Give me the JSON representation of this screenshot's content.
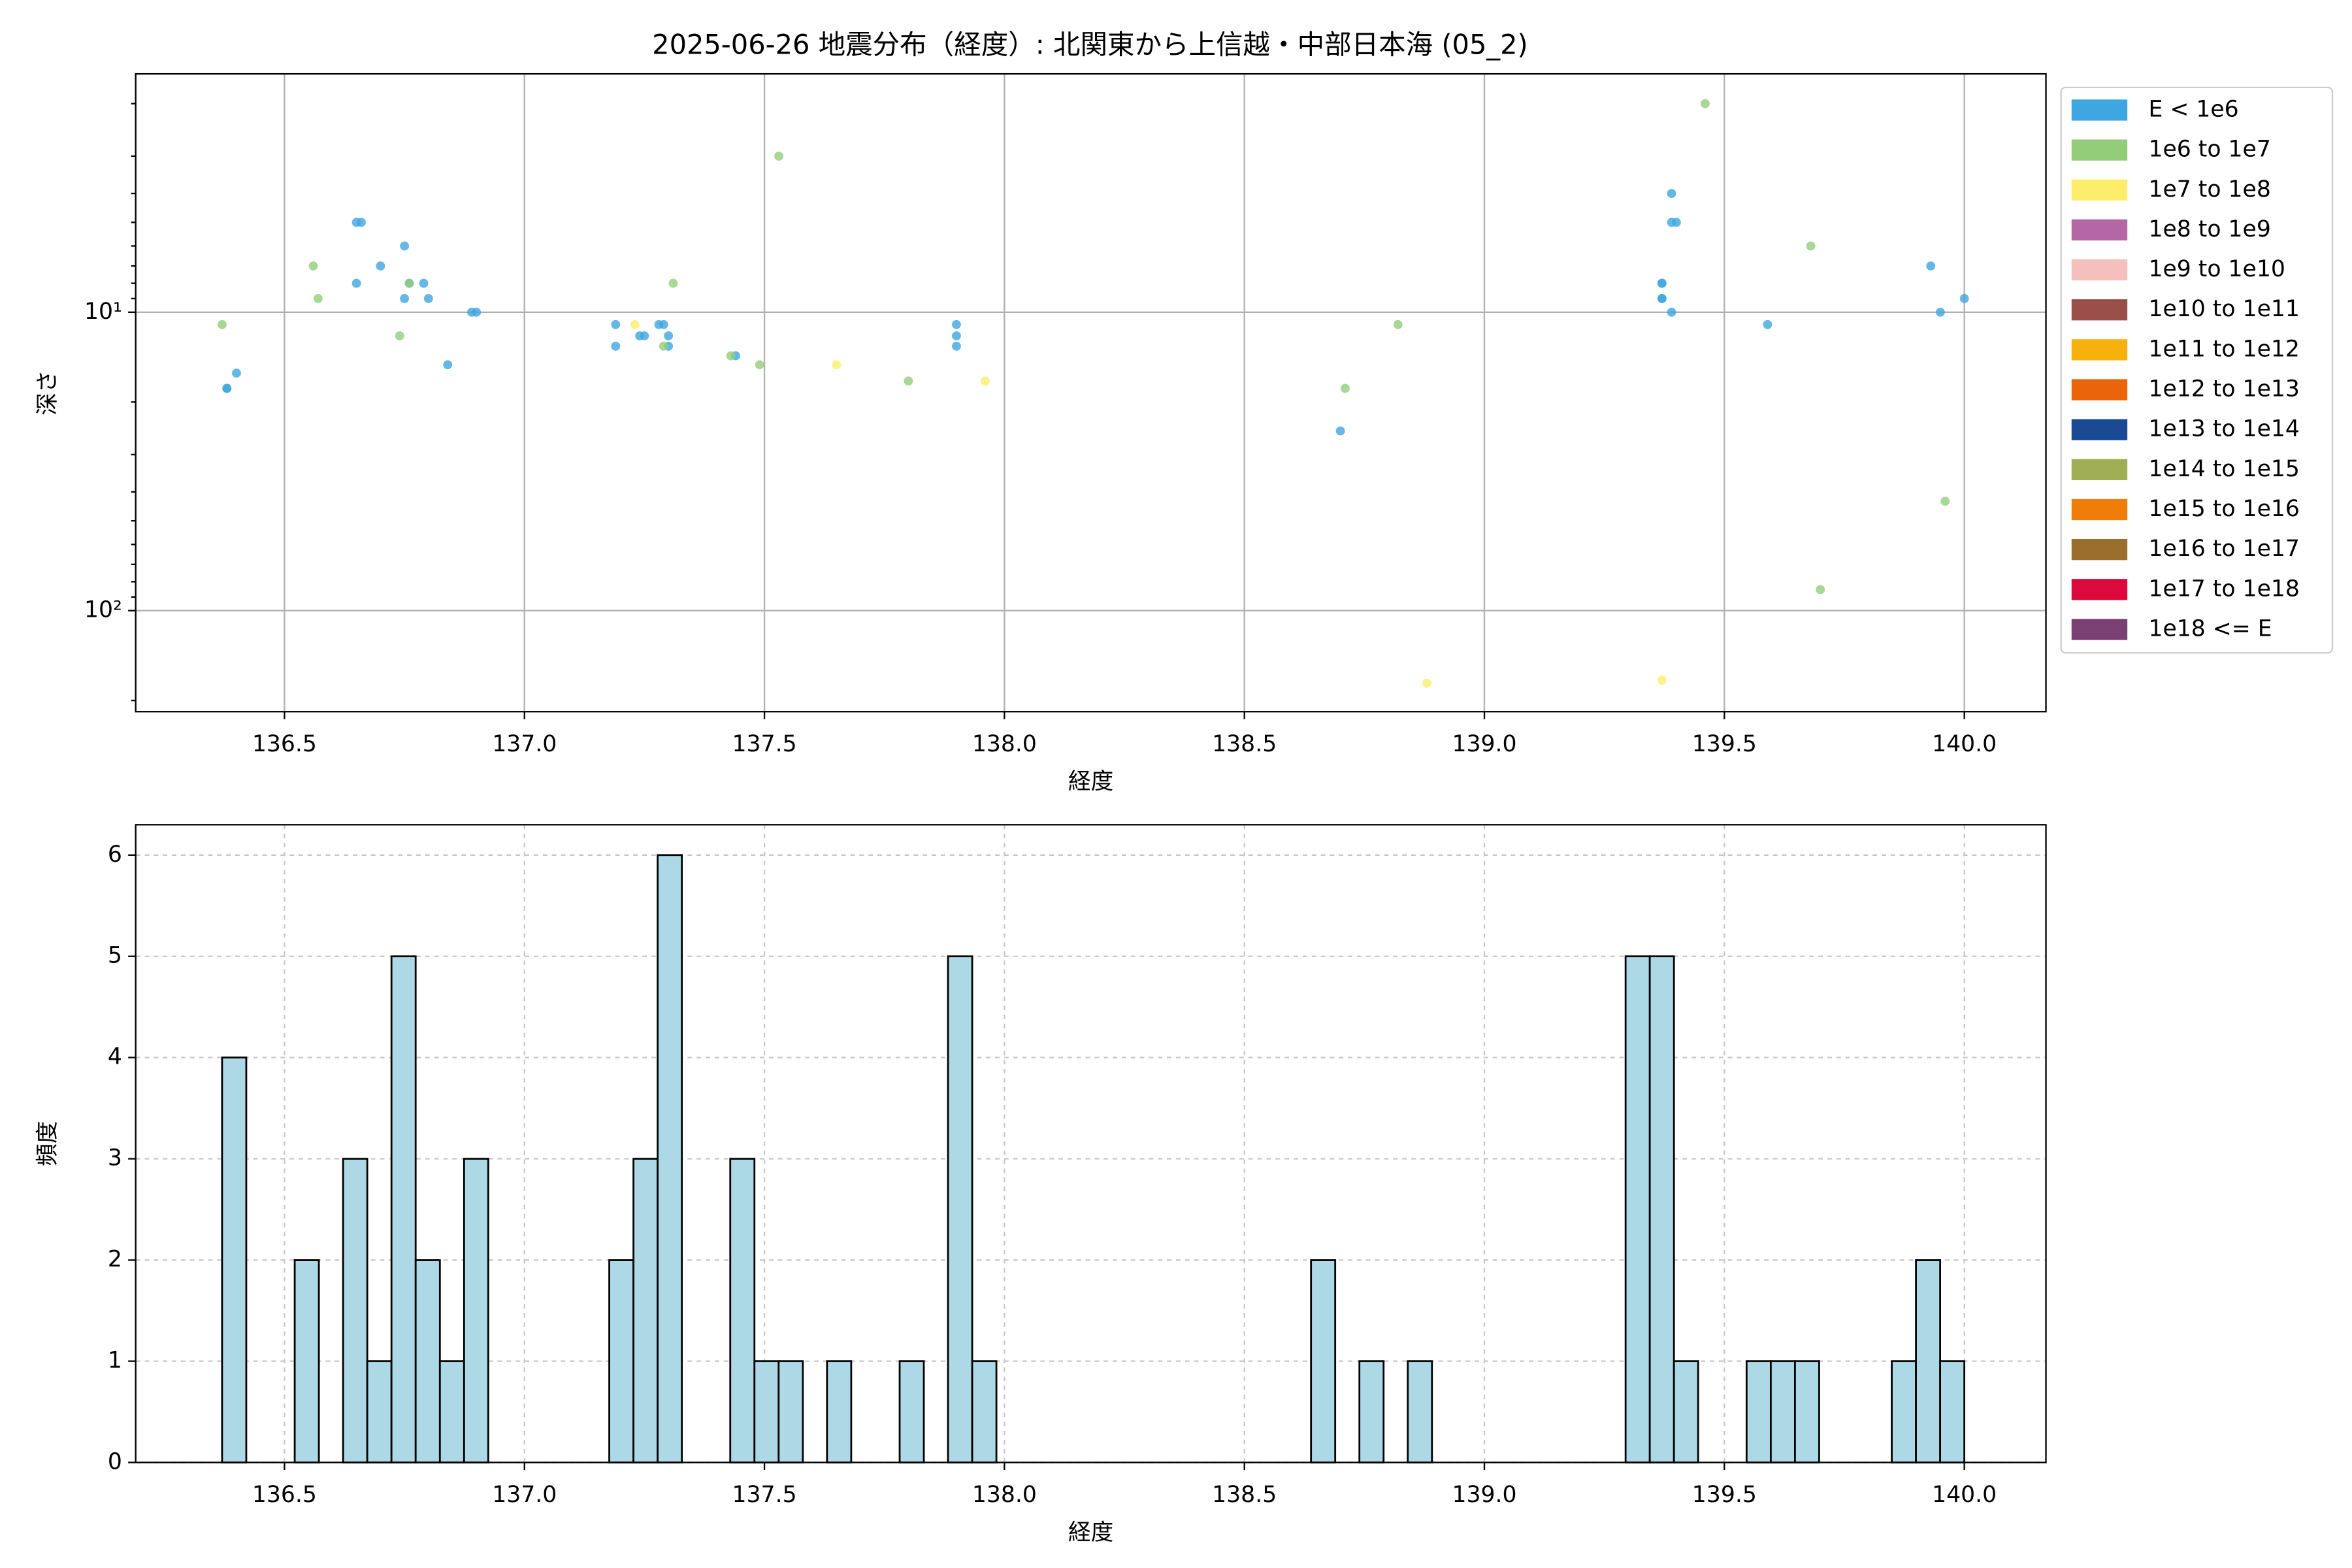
{
  "chart_data": [
    {
      "type": "scatter",
      "title": "2025-06-26 地震分布（経度）: 北関東から上信越・中部日本海 (05_2)",
      "xlabel": "経度",
      "ylabel": "深さ",
      "xlim": [
        136.19,
        140.17
      ],
      "ylim": [
        218,
        1.59
      ],
      "yscale": "log",
      "grid": true,
      "legend": "outside right",
      "xticks": [
        136.5,
        {
          "value": 137,
          "label": "137.0"
        },
        137.5,
        {
          "value": 138,
          "label": "138.0"
        },
        138.5,
        {
          "value": 139,
          "label": "139.0"
        },
        139.5,
        {
          "value": 140,
          "label": "140.0"
        }
      ],
      "yticks": [
        {
          "value": 10,
          "label": "10¹"
        },
        {
          "value": 100,
          "label": "10²"
        }
      ],
      "yminorticks": [
        2,
        3,
        4,
        5,
        6,
        7,
        8,
        9,
        20,
        30,
        40,
        50,
        60,
        70,
        80,
        90,
        200
      ],
      "series": [
        {
          "name": "E < 1e6",
          "color": "#3ea6e0",
          "x": [
            136.38,
            136.38,
            136.4,
            136.65,
            136.66,
            136.65,
            136.7,
            136.75,
            136.75,
            136.76,
            136.79,
            136.8,
            136.84,
            136.89,
            136.9,
            137.19,
            137.19,
            137.24,
            137.25,
            137.28,
            137.29,
            137.3,
            137.3,
            137.44,
            137.9,
            137.9,
            137.9,
            138.7,
            139.39,
            139.39,
            139.4,
            139.37,
            139.37,
            139.37,
            139.37,
            139.39,
            139.59,
            139.93,
            139.95,
            140.0
          ],
          "values": [
            18,
            18,
            16,
            5,
            5,
            8,
            7,
            6,
            9,
            8,
            8,
            9,
            15,
            10,
            10,
            11,
            13,
            12,
            12,
            11,
            11,
            12,
            13,
            14,
            11,
            12,
            13,
            25,
            4,
            5,
            5,
            8,
            8,
            9,
            9,
            10,
            11,
            7,
            10,
            9
          ]
        },
        {
          "name": "1e6 to 1e7",
          "color": "#94cd7a",
          "x": [
            136.37,
            136.56,
            136.57,
            136.74,
            136.76,
            137.31,
            137.29,
            137.43,
            137.49,
            137.53,
            137.8,
            138.71,
            138.82,
            139.46,
            139.68,
            139.96,
            139.7
          ],
          "values": [
            11,
            7,
            9,
            12,
            8,
            8,
            13,
            14,
            15,
            3,
            17,
            18,
            11,
            2,
            6,
            43,
            85
          ]
        },
        {
          "name": "1e7 to 1e8",
          "color": "#fced6a",
          "x": [
            137.23,
            137.65,
            137.96,
            138.88,
            139.37
          ],
          "values": [
            11,
            15,
            17,
            175,
            171
          ]
        },
        {
          "name": "1e8 to 1e9",
          "color": "#b566a5",
          "x": [],
          "values": []
        },
        {
          "name": "1e9 to 1e10",
          "color": "#f4bfbc",
          "x": [],
          "values": []
        },
        {
          "name": "1e10 to 1e11",
          "color": "#9a4f4b",
          "x": [],
          "values": []
        },
        {
          "name": "1e11 to 1e12",
          "color": "#f7b10d",
          "x": [],
          "values": []
        },
        {
          "name": "1e12 to 1e13",
          "color": "#ea6509",
          "x": [],
          "values": []
        },
        {
          "name": "1e13 to 1e14",
          "color": "#1b4a95",
          "x": [],
          "values": []
        },
        {
          "name": "1e14 to 1e15",
          "color": "#9fae53",
          "x": [],
          "values": []
        },
        {
          "name": "1e15 to 1e16",
          "color": "#f07d0a",
          "x": [],
          "values": []
        },
        {
          "name": "1e16 to 1e17",
          "color": "#9a6f2e",
          "x": [],
          "values": []
        },
        {
          "name": "1e17 to 1e18",
          "color": "#dc0a3c",
          "x": [],
          "values": []
        },
        {
          "name": "1e18 <= E",
          "color": "#7a3f73",
          "x": [],
          "values": []
        }
      ]
    },
    {
      "type": "histogram",
      "xlabel": "経度",
      "ylabel": "頻度",
      "xlim": [
        136.19,
        140.17
      ],
      "ylim": [
        0,
        6.3
      ],
      "grid": "dashed",
      "color": "#add8e6",
      "edgecolor": "#000000",
      "xticks": [
        136.5,
        {
          "value": 137,
          "label": "137.0"
        },
        137.5,
        {
          "value": 138,
          "label": "138.0"
        },
        138.5,
        {
          "value": 139,
          "label": "139.0"
        },
        139.5,
        {
          "value": 140,
          "label": "140.0"
        }
      ],
      "yticks": [
        0,
        1,
        2,
        3,
        4,
        5,
        6
      ],
      "bins": [
        136.37,
        136.4204,
        136.4708,
        136.5213,
        136.5717,
        136.6221,
        136.6725,
        136.7229,
        136.7733,
        136.8238,
        136.8742,
        136.9246,
        136.975,
        137.0254,
        137.0758,
        137.1263,
        137.1767,
        137.2271,
        137.2775,
        137.3279,
        137.3783,
        137.4288,
        137.4792,
        137.5296,
        137.58,
        137.6304,
        137.6808,
        137.7313,
        137.7817,
        137.8321,
        137.8825,
        137.9329,
        137.9833,
        138.0338,
        138.0842,
        138.1346,
        138.185,
        138.2354,
        138.2858,
        138.3363,
        138.3867,
        138.4371,
        138.4875,
        138.5379,
        138.5883,
        138.6388,
        138.6892,
        138.7396,
        138.79,
        138.8404,
        138.8908,
        138.9413,
        138.9917,
        139.0421,
        139.0925,
        139.1429,
        139.1933,
        139.2438,
        139.2942,
        139.3446,
        139.395,
        139.4454,
        139.4958,
        139.5463,
        139.5967,
        139.6471,
        139.6975,
        139.7479,
        139.7983,
        139.8488,
        139.8992,
        139.9496,
        140.0
      ],
      "values": [
        4,
        0,
        0,
        2,
        0,
        3,
        1,
        5,
        2,
        1,
        3,
        0,
        0,
        0,
        0,
        0,
        2,
        3,
        6,
        0,
        0,
        3,
        1,
        1,
        0,
        1,
        0,
        0,
        1,
        0,
        5,
        1,
        0,
        0,
        0,
        0,
        0,
        0,
        0,
        0,
        0,
        0,
        0,
        0,
        0,
        2,
        0,
        1,
        0,
        1,
        0,
        0,
        0,
        0,
        0,
        0,
        0,
        0,
        5,
        5,
        1,
        0,
        0,
        1,
        1,
        1,
        0,
        0,
        0,
        1,
        2,
        1
      ]
    }
  ]
}
